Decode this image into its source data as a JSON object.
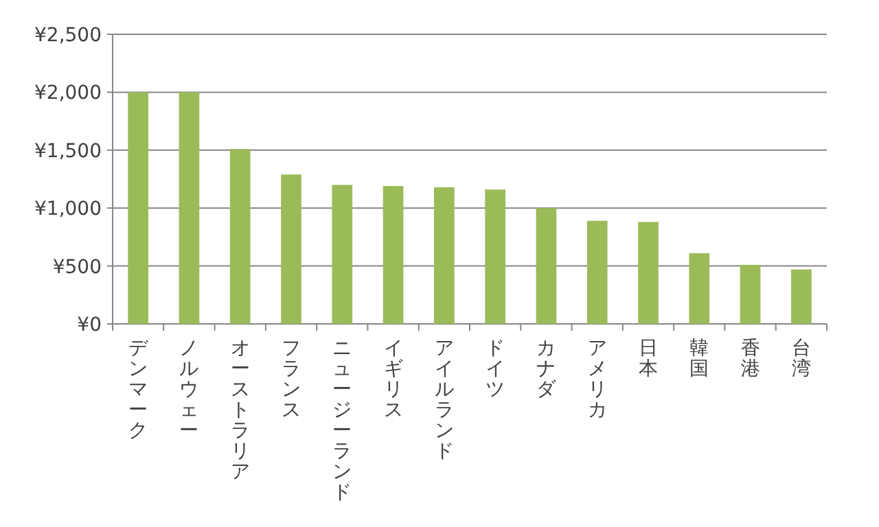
{
  "chart_data": {
    "type": "bar",
    "categories": [
      "デンマーク",
      "ノルウェー",
      "オーストラリア",
      "フランス",
      "ニュージーランド",
      "イギリス",
      "アイルランド",
      "ドイツ",
      "カナダ",
      "アメリカ",
      "日本",
      "韓国",
      "香港",
      "台湾"
    ],
    "values": [
      2000,
      2000,
      1510,
      1290,
      1200,
      1190,
      1180,
      1160,
      1000,
      890,
      880,
      610,
      510,
      470
    ],
    "color": "#9bbb59",
    "ylim": [
      0,
      2500
    ],
    "yticks": [
      {
        "value": 0,
        "label": "¥0"
      },
      {
        "value": 500,
        "label": "¥500"
      },
      {
        "value": 1000,
        "label": "¥1,000"
      },
      {
        "value": 1500,
        "label": "¥1,500"
      },
      {
        "value": 2000,
        "label": "¥2,000"
      },
      {
        "value": 2500,
        "label": "¥2,500"
      }
    ],
    "grid": "y",
    "legend": false
  }
}
